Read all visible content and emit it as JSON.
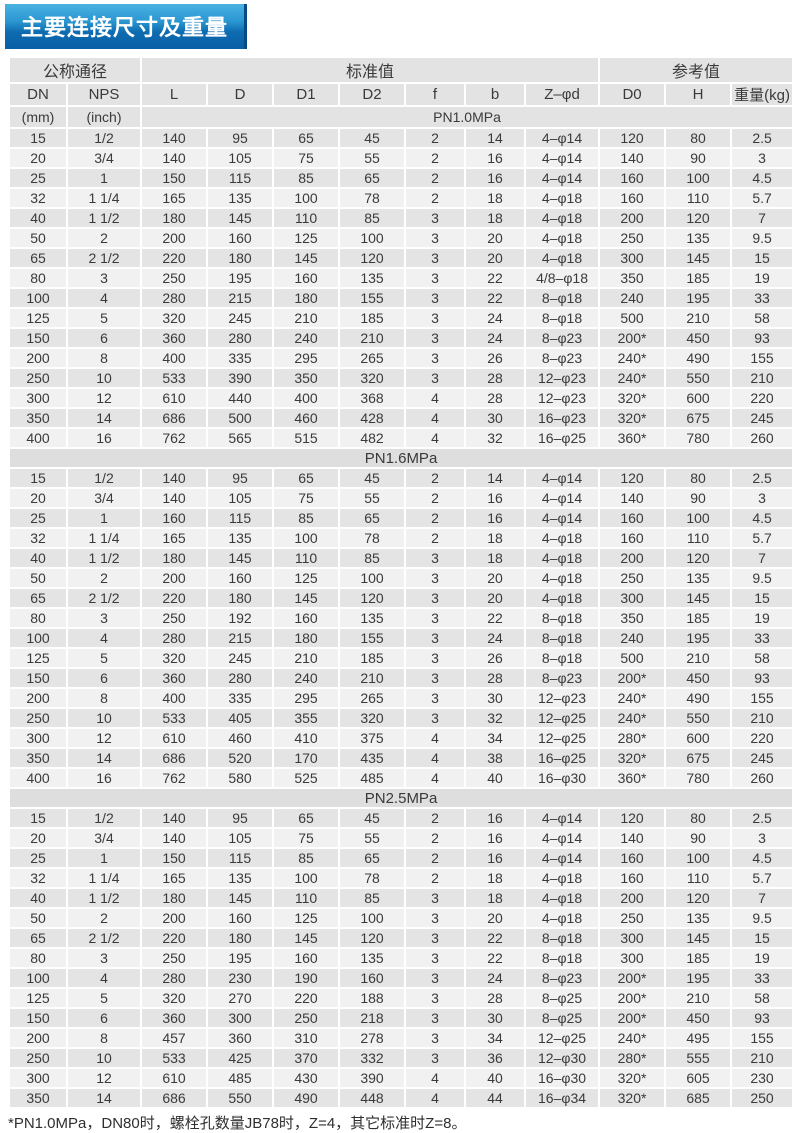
{
  "title": "主要连接尺寸及重量",
  "colors": {
    "title_gradient_top": "#4ab2e2",
    "title_gradient_bottom": "#0a5ea6",
    "header_row_bg": "#e3e3e3",
    "section_row_bg": "#dedede",
    "row_dark_bg": "#e4e4e4",
    "row_light_bg": "#f1f1f1",
    "text": "#3a3a3a"
  },
  "table": {
    "group_headers": {
      "nominal": "公称通径",
      "standard": "标准值",
      "reference": "参考值"
    },
    "columns": [
      "DN",
      "NPS",
      "L",
      "D",
      "D1",
      "D2",
      "f",
      "b",
      "Z–φd",
      "D0",
      "H",
      "重量(kg)"
    ],
    "units": {
      "dn": "(mm)",
      "nps": "(inch)"
    },
    "sections": [
      {
        "label": "PN1.0MPa",
        "rows": [
          [
            "15",
            "1/2",
            "140",
            "95",
            "65",
            "45",
            "2",
            "14",
            "4–φ14",
            "120",
            "80",
            "2.5"
          ],
          [
            "20",
            "3/4",
            "140",
            "105",
            "75",
            "55",
            "2",
            "16",
            "4–φ14",
            "140",
            "90",
            "3"
          ],
          [
            "25",
            "1",
            "150",
            "115",
            "85",
            "65",
            "2",
            "16",
            "4–φ14",
            "160",
            "100",
            "4.5"
          ],
          [
            "32",
            "1 1/4",
            "165",
            "135",
            "100",
            "78",
            "2",
            "18",
            "4–φ18",
            "160",
            "110",
            "5.7"
          ],
          [
            "40",
            "1 1/2",
            "180",
            "145",
            "110",
            "85",
            "3",
            "18",
            "4–φ18",
            "200",
            "120",
            "7"
          ],
          [
            "50",
            "2",
            "200",
            "160",
            "125",
            "100",
            "3",
            "20",
            "4–φ18",
            "250",
            "135",
            "9.5"
          ],
          [
            "65",
            "2 1/2",
            "220",
            "180",
            "145",
            "120",
            "3",
            "20",
            "4–φ18",
            "300",
            "145",
            "15"
          ],
          [
            "80",
            "3",
            "250",
            "195",
            "160",
            "135",
            "3",
            "22",
            "4/8–φ18",
            "350",
            "185",
            "19"
          ],
          [
            "100",
            "4",
            "280",
            "215",
            "180",
            "155",
            "3",
            "22",
            "8–φ18",
            "240",
            "195",
            "33"
          ],
          [
            "125",
            "5",
            "320",
            "245",
            "210",
            "185",
            "3",
            "24",
            "8–φ18",
            "500",
            "210",
            "58"
          ],
          [
            "150",
            "6",
            "360",
            "280",
            "240",
            "210",
            "3",
            "24",
            "8–φ23",
            "200*",
            "450",
            "93"
          ],
          [
            "200",
            "8",
            "400",
            "335",
            "295",
            "265",
            "3",
            "26",
            "8–φ23",
            "240*",
            "490",
            "155"
          ],
          [
            "250",
            "10",
            "533",
            "390",
            "350",
            "320",
            "3",
            "28",
            "12–φ23",
            "240*",
            "550",
            "210"
          ],
          [
            "300",
            "12",
            "610",
            "440",
            "400",
            "368",
            "4",
            "28",
            "12–φ23",
            "320*",
            "600",
            "220"
          ],
          [
            "350",
            "14",
            "686",
            "500",
            "460",
            "428",
            "4",
            "30",
            "16–φ23",
            "320*",
            "675",
            "245"
          ],
          [
            "400",
            "16",
            "762",
            "565",
            "515",
            "482",
            "4",
            "32",
            "16–φ25",
            "360*",
            "780",
            "260"
          ]
        ]
      },
      {
        "label": "PN1.6MPa",
        "rows": [
          [
            "15",
            "1/2",
            "140",
            "95",
            "65",
            "45",
            "2",
            "14",
            "4–φ14",
            "120",
            "80",
            "2.5"
          ],
          [
            "20",
            "3/4",
            "140",
            "105",
            "75",
            "55",
            "2",
            "16",
            "4–φ14",
            "140",
            "90",
            "3"
          ],
          [
            "25",
            "1",
            "160",
            "115",
            "85",
            "65",
            "2",
            "16",
            "4–φ14",
            "160",
            "100",
            "4.5"
          ],
          [
            "32",
            "1 1/4",
            "165",
            "135",
            "100",
            "78",
            "2",
            "18",
            "4–φ18",
            "160",
            "110",
            "5.7"
          ],
          [
            "40",
            "1 1/2",
            "180",
            "145",
            "110",
            "85",
            "3",
            "18",
            "4–φ18",
            "200",
            "120",
            "7"
          ],
          [
            "50",
            "2",
            "200",
            "160",
            "125",
            "100",
            "3",
            "20",
            "4–φ18",
            "250",
            "135",
            "9.5"
          ],
          [
            "65",
            "2 1/2",
            "220",
            "180",
            "145",
            "120",
            "3",
            "20",
            "4–φ18",
            "300",
            "145",
            "15"
          ],
          [
            "80",
            "3",
            "250",
            "192",
            "160",
            "135",
            "3",
            "22",
            "8–φ18",
            "350",
            "185",
            "19"
          ],
          [
            "100",
            "4",
            "280",
            "215",
            "180",
            "155",
            "3",
            "24",
            "8–φ18",
            "240",
            "195",
            "33"
          ],
          [
            "125",
            "5",
            "320",
            "245",
            "210",
            "185",
            "3",
            "26",
            "8–φ18",
            "500",
            "210",
            "58"
          ],
          [
            "150",
            "6",
            "360",
            "280",
            "240",
            "210",
            "3",
            "28",
            "8–φ23",
            "200*",
            "450",
            "93"
          ],
          [
            "200",
            "8",
            "400",
            "335",
            "295",
            "265",
            "3",
            "30",
            "12–φ23",
            "240*",
            "490",
            "155"
          ],
          [
            "250",
            "10",
            "533",
            "405",
            "355",
            "320",
            "3",
            "32",
            "12–φ25",
            "240*",
            "550",
            "210"
          ],
          [
            "300",
            "12",
            "610",
            "460",
            "410",
            "375",
            "4",
            "34",
            "12–φ25",
            "280*",
            "600",
            "220"
          ],
          [
            "350",
            "14",
            "686",
            "520",
            "170",
            "435",
            "4",
            "38",
            "16–φ25",
            "320*",
            "675",
            "245"
          ],
          [
            "400",
            "16",
            "762",
            "580",
            "525",
            "485",
            "4",
            "40",
            "16–φ30",
            "360*",
            "780",
            "260"
          ]
        ]
      },
      {
        "label": "PN2.5MPa",
        "rows": [
          [
            "15",
            "1/2",
            "140",
            "95",
            "65",
            "45",
            "2",
            "16",
            "4–φ14",
            "120",
            "80",
            "2.5"
          ],
          [
            "20",
            "3/4",
            "140",
            "105",
            "75",
            "55",
            "2",
            "16",
            "4–φ14",
            "140",
            "90",
            "3"
          ],
          [
            "25",
            "1",
            "150",
            "115",
            "85",
            "65",
            "2",
            "16",
            "4–φ14",
            "160",
            "100",
            "4.5"
          ],
          [
            "32",
            "1 1/4",
            "165",
            "135",
            "100",
            "78",
            "2",
            "18",
            "4–φ18",
            "160",
            "110",
            "5.7"
          ],
          [
            "40",
            "1 1/2",
            "180",
            "145",
            "110",
            "85",
            "3",
            "18",
            "4–φ18",
            "200",
            "120",
            "7"
          ],
          [
            "50",
            "2",
            "200",
            "160",
            "125",
            "100",
            "3",
            "20",
            "4–φ18",
            "250",
            "135",
            "9.5"
          ],
          [
            "65",
            "2 1/2",
            "220",
            "180",
            "145",
            "120",
            "3",
            "22",
            "8–φ18",
            "300",
            "145",
            "15"
          ],
          [
            "80",
            "3",
            "250",
            "195",
            "160",
            "135",
            "3",
            "22",
            "8–φ18",
            "300",
            "185",
            "19"
          ],
          [
            "100",
            "4",
            "280",
            "230",
            "190",
            "160",
            "3",
            "24",
            "8–φ23",
            "200*",
            "195",
            "33"
          ],
          [
            "125",
            "5",
            "320",
            "270",
            "220",
            "188",
            "3",
            "28",
            "8–φ25",
            "200*",
            "210",
            "58"
          ],
          [
            "150",
            "6",
            "360",
            "300",
            "250",
            "218",
            "3",
            "30",
            "8–φ25",
            "200*",
            "450",
            "93"
          ],
          [
            "200",
            "8",
            "457",
            "360",
            "310",
            "278",
            "3",
            "34",
            "12–φ25",
            "240*",
            "495",
            "155"
          ],
          [
            "250",
            "10",
            "533",
            "425",
            "370",
            "332",
            "3",
            "36",
            "12–φ30",
            "280*",
            "555",
            "210"
          ],
          [
            "300",
            "12",
            "610",
            "485",
            "430",
            "390",
            "4",
            "40",
            "16–φ30",
            "320*",
            "605",
            "230"
          ],
          [
            "350",
            "14",
            "686",
            "550",
            "490",
            "448",
            "4",
            "44",
            "16–φ34",
            "320*",
            "685",
            "250"
          ]
        ]
      }
    ],
    "footnote": "*PN1.0MPa，DN80时，螺栓孔数量JB78时，Z=4，其它标准时Z=8。"
  }
}
